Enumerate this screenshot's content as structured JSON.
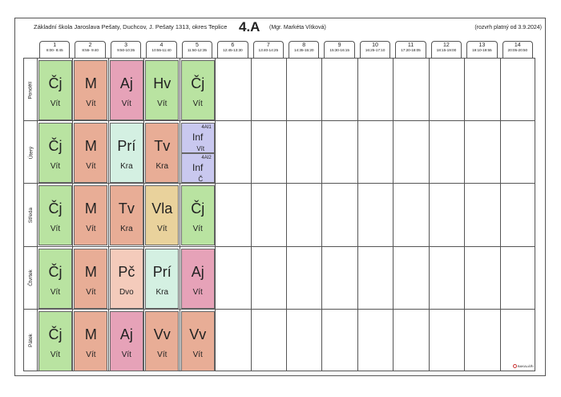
{
  "header": {
    "school": "Základní škola Jaroslava Pešaty, Duchcov, J. Pešaty 1313, okres Teplice",
    "class_name": "4.A",
    "teacher": "(Mgr. Markéta Vítková)",
    "validity": "(rozvrh platný od 3.9.2024)"
  },
  "periods": [
    {
      "num": "1",
      "time": "8:00- 8:45"
    },
    {
      "num": "2",
      "time": "8:55- 9:40"
    },
    {
      "num": "3",
      "time": "9:50-10:35"
    },
    {
      "num": "4",
      "time": "10:55-11:40"
    },
    {
      "num": "5",
      "time": "11:50-12:35"
    },
    {
      "num": "6",
      "time": "12:45-13:30"
    },
    {
      "num": "7",
      "time": "13:40-14:25"
    },
    {
      "num": "8",
      "time": "14:35-15:20"
    },
    {
      "num": "9",
      "time": "15:30-16:15"
    },
    {
      "num": "10",
      "time": "16:25-17:10"
    },
    {
      "num": "11",
      "time": "17:20-18:05"
    },
    {
      "num": "12",
      "time": "18:15-19:00"
    },
    {
      "num": "13",
      "time": "19:10-19:55"
    },
    {
      "num": "14",
      "time": "20:05-20:50"
    }
  ],
  "days": [
    {
      "name": "Pondělí",
      "lessons": [
        {
          "subject": "Čj",
          "teacher": "Vít",
          "color": "#b9e3a1"
        },
        {
          "subject": "M",
          "teacher": "Vít",
          "color": "#e8ad96"
        },
        {
          "subject": "Aj",
          "teacher": "Vít",
          "color": "#e6a2b8"
        },
        {
          "subject": "Hv",
          "teacher": "Vít",
          "color": "#b9e3a1"
        },
        {
          "subject": "Čj",
          "teacher": "Vít",
          "color": "#b9e3a1"
        }
      ]
    },
    {
      "name": "Úterý",
      "lessons": [
        {
          "subject": "Čj",
          "teacher": "Vít",
          "color": "#b9e3a1"
        },
        {
          "subject": "M",
          "teacher": "Vít",
          "color": "#e8ad96"
        },
        {
          "subject": "Prí",
          "teacher": "Kra",
          "color": "#d4f0e2"
        },
        {
          "subject": "Tv",
          "teacher": "Kra",
          "color": "#e8ad96"
        },
        {
          "split": true,
          "color": "#c9c8ef",
          "groups": [
            {
              "group": "4AI1",
              "subject": "Inf",
              "teacher": "Vít"
            },
            {
              "group": "4AI2",
              "subject": "Inf",
              "teacher": "Č"
            }
          ]
        }
      ]
    },
    {
      "name": "Středa",
      "lessons": [
        {
          "subject": "Čj",
          "teacher": "Vít",
          "color": "#b9e3a1"
        },
        {
          "subject": "M",
          "teacher": "Vít",
          "color": "#e8ad96"
        },
        {
          "subject": "Tv",
          "teacher": "Kra",
          "color": "#e8ad96"
        },
        {
          "subject": "Vla",
          "teacher": "Vít",
          "color": "#e9d29c"
        },
        {
          "subject": "Čj",
          "teacher": "Vít",
          "color": "#b9e3a1"
        }
      ]
    },
    {
      "name": "Čtvrtek",
      "lessons": [
        {
          "subject": "Čj",
          "teacher": "Vít",
          "color": "#b9e3a1"
        },
        {
          "subject": "M",
          "teacher": "Vít",
          "color": "#e8ad96"
        },
        {
          "subject": "Pč",
          "teacher": "Dvo",
          "color": "#f4cbbb"
        },
        {
          "subject": "Prí",
          "teacher": "Kra",
          "color": "#d4f0e2"
        },
        {
          "subject": "Aj",
          "teacher": "Vít",
          "color": "#e6a2b8"
        }
      ]
    },
    {
      "name": "Pátek",
      "lessons": [
        {
          "subject": "Čj",
          "teacher": "Vít",
          "color": "#b9e3a1"
        },
        {
          "subject": "M",
          "teacher": "Vít",
          "color": "#e8ad96"
        },
        {
          "subject": "Aj",
          "teacher": "Vít",
          "color": "#e6a2b8"
        },
        {
          "subject": "Vv",
          "teacher": "Vít",
          "color": "#e8ad96"
        },
        {
          "subject": "Vv",
          "teacher": "Vít",
          "color": "#e8ad96"
        }
      ]
    }
  ],
  "footer": {
    "logo_text": "BAKALÁŘI"
  }
}
